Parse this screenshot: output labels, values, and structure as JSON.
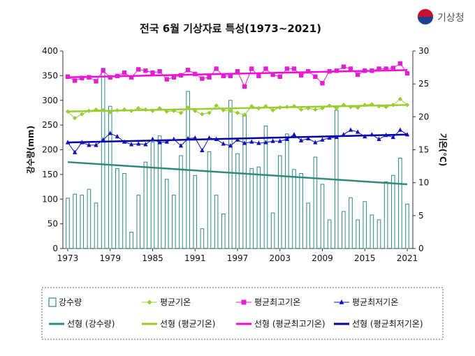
{
  "logo": {
    "text": "기상청"
  },
  "chart_data": {
    "type": "bar",
    "title": "전국  6월 기상자료 특성(1973~2021)",
    "ylabel_left": "강수량(mm)",
    "ylabel_right": "기온(℃)",
    "ylim_left": [
      0,
      400
    ],
    "ylim_right": [
      0,
      30
    ],
    "x_tick_labels": [
      "1973",
      "1979",
      "1985",
      "1991",
      "1997",
      "2003",
      "2009",
      "2015",
      "2021"
    ],
    "y_left_ticks": [
      0,
      50,
      100,
      150,
      200,
      250,
      300,
      350,
      400
    ],
    "y_right_ticks": [
      0,
      5,
      10,
      15,
      20,
      25,
      30
    ],
    "grid": false,
    "x": [
      1973,
      1974,
      1975,
      1976,
      1977,
      1978,
      1979,
      1980,
      1981,
      1982,
      1983,
      1984,
      1985,
      1986,
      1987,
      1988,
      1989,
      1990,
      1991,
      1992,
      1993,
      1994,
      1995,
      1996,
      1997,
      1998,
      1999,
      2000,
      2001,
      2002,
      2003,
      2004,
      2005,
      2006,
      2007,
      2008,
      2009,
      2010,
      2011,
      2012,
      2013,
      2014,
      2015,
      2016,
      2017,
      2018,
      2019,
      2020,
      2021
    ],
    "series": [
      {
        "name": "강수량",
        "kind": "bar",
        "axis": "left",
        "color": "#2e8a7e",
        "values": [
          102,
          110,
          108,
          120,
          92,
          365,
          288,
          162,
          152,
          33,
          108,
          175,
          215,
          228,
          140,
          108,
          188,
          318,
          148,
          40,
          196,
          108,
          70,
          300,
          192,
          272,
          162,
          165,
          248,
          72,
          188,
          232,
          160,
          152,
          92,
          185,
          130,
          58,
          280,
          75,
          103,
          58,
          95,
          68,
          58,
          135,
          148,
          183,
          90
        ]
      },
      {
        "name": "평균기온",
        "kind": "line",
        "axis": "right",
        "color": "#9acd32",
        "marker": "diamond",
        "values": [
          20.8,
          19.8,
          20.4,
          20.9,
          21.1,
          21.0,
          20.7,
          21.0,
          21.1,
          20.9,
          21.3,
          21.1,
          20.9,
          21.3,
          20.8,
          20.9,
          20.6,
          21.4,
          20.9,
          20.4,
          20.6,
          21.7,
          21.0,
          20.9,
          20.6,
          20.3,
          21.6,
          21.3,
          21.6,
          21.0,
          21.4,
          21.5,
          21.6,
          21.1,
          21.3,
          21.1,
          21.3,
          21.7,
          21.3,
          21.8,
          21.5,
          21.4,
          21.8,
          21.9,
          21.6,
          21.5,
          21.8,
          22.7,
          21.8
        ]
      },
      {
        "name": "평균최고기온",
        "kind": "line",
        "axis": "right",
        "color": "#e020d0",
        "marker": "square",
        "values": [
          26.1,
          25.5,
          25.9,
          26.0,
          25.4,
          27.0,
          26.0,
          26.2,
          26.7,
          26.0,
          27.2,
          27.0,
          26.7,
          26.9,
          25.7,
          26.0,
          26.3,
          27.1,
          26.5,
          25.8,
          26.0,
          27.3,
          26.2,
          26.2,
          26.9,
          24.6,
          27.3,
          26.2,
          27.3,
          26.4,
          26.1,
          27.3,
          27.3,
          26.3,
          26.9,
          26.1,
          25.1,
          26.9,
          27.0,
          27.6,
          27.3,
          26.4,
          27.0,
          27.0,
          27.3,
          27.3,
          27.4,
          28.1,
          26.6
        ]
      },
      {
        "name": "평균최저기온",
        "kind": "line",
        "axis": "right",
        "color": "#1010c0",
        "marker": "triangle",
        "values": [
          16.1,
          14.6,
          16.1,
          15.7,
          15.7,
          16.5,
          17.5,
          17.0,
          16.2,
          15.8,
          15.9,
          15.8,
          16.6,
          16.1,
          16.2,
          16.6,
          15.6,
          16.7,
          16.8,
          14.9,
          16.8,
          16.6,
          15.9,
          15.6,
          16.5,
          16.0,
          16.2,
          16.0,
          16.1,
          16.3,
          16.3,
          16.6,
          17.3,
          16.4,
          16.7,
          16.1,
          16.5,
          16.8,
          16.9,
          17.3,
          18.0,
          17.7,
          17.0,
          17.3,
          16.6,
          17.2,
          16.9,
          18.0,
          17.3
        ]
      }
    ],
    "trendlines": [
      {
        "name": "선형 (강수량)",
        "axis": "left",
        "color": "#2e8a7e",
        "start": 175,
        "end": 130
      },
      {
        "name": "선형 (평균기온)",
        "axis": "right",
        "color": "#9acd32",
        "start": 20.8,
        "end": 21.8
      },
      {
        "name": "선형 (평균최고기온)",
        "axis": "right",
        "color": "#ff00e0",
        "start": 26.0,
        "end": 27.1
      },
      {
        "name": "선형 (평균최저기온)",
        "axis": "right",
        "color": "#0000a0",
        "start": 16.1,
        "end": 17.3
      }
    ],
    "legend": {
      "position": "bottom",
      "items": [
        {
          "label": "강수량",
          "kind": "bar",
          "color": "#2e8a7e"
        },
        {
          "label": "평균기온",
          "kind": "marker",
          "marker": "diamond",
          "color": "#9acd32"
        },
        {
          "label": "평균최고기온",
          "kind": "marker",
          "marker": "square",
          "color": "#e020d0"
        },
        {
          "label": "평균최저기온",
          "kind": "marker",
          "marker": "triangle",
          "color": "#1010c0"
        },
        {
          "label": "선형 (강수량)",
          "kind": "line",
          "color": "#2e8a7e"
        },
        {
          "label": "선형 (평균기온)",
          "kind": "line",
          "color": "#9acd32"
        },
        {
          "label": "선형 (평균최고기온)",
          "kind": "line",
          "color": "#ff00e0"
        },
        {
          "label": "선형 (평균최저기온)",
          "kind": "line",
          "color": "#0000a0"
        }
      ]
    }
  }
}
